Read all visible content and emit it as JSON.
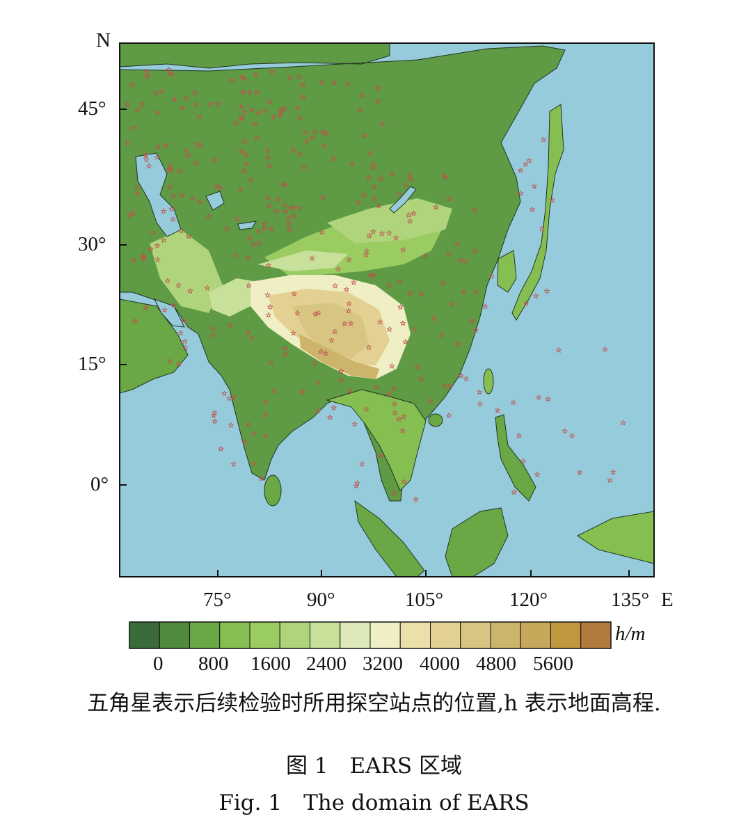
{
  "figure": {
    "north_label": "N",
    "east_label": "E",
    "lat_ticks": [
      "45°",
      "30°",
      "15°",
      "0°"
    ],
    "lon_ticks": [
      "75°",
      "90°",
      "105°",
      "120°",
      "135°"
    ],
    "colors": {
      "ocean": "#96cbdc",
      "frame": "#111111",
      "station_marker": "#c0504d"
    }
  },
  "legend": {
    "unit_label": "h/m",
    "tick_labels": [
      "0",
      "800",
      "1600",
      "2400",
      "3200",
      "4000",
      "4800",
      "5600"
    ],
    "colors": [
      "#3a6b3a",
      "#4f8a3f",
      "#6aa845",
      "#85bf52",
      "#9bcc62",
      "#afd47c",
      "#c7e09a",
      "#dde9b8",
      "#efeec4",
      "#ebdfaa",
      "#e3d194",
      "#d9c582",
      "#ccb46a",
      "#c6a85b",
      "#c0963e",
      "#b07b3c"
    ]
  },
  "note": "五角星表示后续检验时所用探空站点的位置,h 表示地面高程.",
  "caption": {
    "cn": "图 1　EARS 区域",
    "en": "Fig. 1　The domain of EARS"
  }
}
